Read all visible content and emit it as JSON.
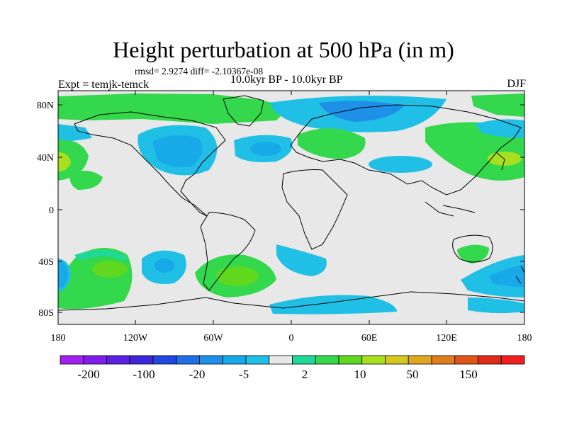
{
  "title": "Height perturbation at 500 hPa (in m)",
  "stats": "rmsd= 2.9274 diff= -2.10367e-08",
  "experiment": "Expt = temjk-temck",
  "period": "10.0kyr BP - 10.0kyr BP",
  "season": "DJF",
  "lat_ticks": [
    "80N",
    "40N",
    "0",
    "40S",
    "80S"
  ],
  "lon_ticks": [
    "180",
    "120W",
    "60W",
    "0",
    "60E",
    "120E",
    "180"
  ],
  "colorbar": {
    "colors": [
      "#a020f0",
      "#7e1ee8",
      "#5a1fe0",
      "#3c28d8",
      "#2047e0",
      "#1f6fe6",
      "#1e90e8",
      "#18a9e8",
      "#20c0e6",
      "#e8e8e8",
      "#20d89a",
      "#33d84c",
      "#60d820",
      "#a8e020",
      "#d4c81e",
      "#e0a61e",
      "#e07d1c",
      "#e0551a",
      "#e02a1a",
      "#f01e1e"
    ],
    "labels": [
      "-200",
      "-100",
      "-20",
      "-5",
      "2",
      "10",
      "50",
      "150"
    ]
  }
}
